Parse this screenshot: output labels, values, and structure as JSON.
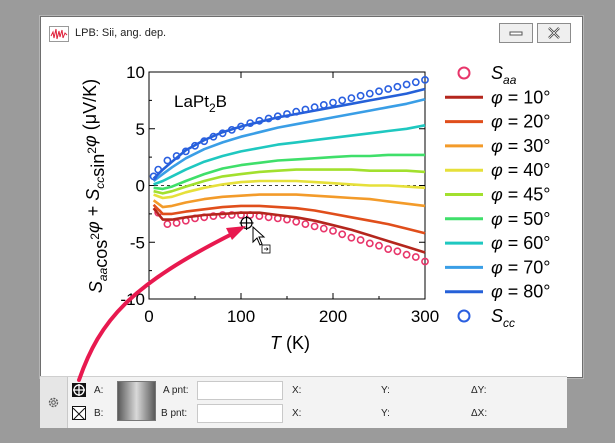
{
  "window": {
    "title": "LPB: Sii, ang. dep.",
    "minimize_icon": "minimize-icon",
    "close_icon": "close-icon"
  },
  "chart_data": {
    "type": "line",
    "title": "",
    "annotation": "LaPt2B",
    "xlabel": "T (K)",
    "ylabel": "Saa cos2 φ + Scc sin2 φ (μV/K)",
    "xlim": [
      0,
      300
    ],
    "ylim": [
      -10,
      10
    ],
    "x_ticks": [
      0,
      100,
      200,
      300
    ],
    "y_ticks": [
      -10,
      -5,
      0,
      5,
      10
    ],
    "legend_position": "right",
    "zero_line": "dashed",
    "series": [
      {
        "name": "Saa",
        "kind": "markers",
        "color": "#e8356a",
        "x": [
          10,
          20,
          30,
          40,
          50,
          60,
          70,
          80,
          90,
          100,
          110,
          120,
          130,
          140,
          150,
          160,
          170,
          180,
          190,
          200,
          210,
          220,
          230,
          240,
          250,
          260,
          270,
          280,
          290,
          300
        ],
        "y": [
          -2.4,
          -3.4,
          -3.3,
          -3.1,
          -2.9,
          -2.8,
          -2.7,
          -2.6,
          -2.6,
          -2.6,
          -2.6,
          -2.7,
          -2.8,
          -2.9,
          -3.0,
          -3.2,
          -3.4,
          -3.6,
          -3.8,
          -4.0,
          -4.3,
          -4.6,
          -4.8,
          -5.1,
          -5.3,
          -5.6,
          -5.8,
          -6.1,
          -6.3,
          -6.7
        ]
      },
      {
        "name": "φ = 10°",
        "kind": "line",
        "color": "#b4261d",
        "x": [
          5,
          15,
          25,
          40,
          60,
          80,
          100,
          120,
          140,
          160,
          180,
          200,
          220,
          240,
          260,
          280,
          300
        ],
        "y": [
          -2.0,
          -3.0,
          -3.0,
          -2.8,
          -2.6,
          -2.5,
          -2.4,
          -2.4,
          -2.6,
          -2.8,
          -3.1,
          -3.5,
          -3.9,
          -4.4,
          -4.9,
          -5.4,
          -5.9
        ]
      },
      {
        "name": "φ = 20°",
        "kind": "line",
        "color": "#e04e1b",
        "x": [
          5,
          15,
          25,
          40,
          60,
          80,
          100,
          120,
          140,
          160,
          180,
          200,
          220,
          240,
          260,
          280,
          300
        ],
        "y": [
          -1.7,
          -2.5,
          -2.5,
          -2.3,
          -2.1,
          -1.9,
          -1.8,
          -1.8,
          -1.9,
          -2.0,
          -2.2,
          -2.5,
          -2.8,
          -3.1,
          -3.4,
          -3.8,
          -4.2
        ]
      },
      {
        "name": "φ = 30°",
        "kind": "line",
        "color": "#f39b2a",
        "x": [
          5,
          15,
          25,
          40,
          60,
          80,
          100,
          120,
          140,
          160,
          180,
          200,
          220,
          240,
          260,
          280,
          300
        ],
        "y": [
          -1.3,
          -1.9,
          -1.8,
          -1.5,
          -1.2,
          -1.0,
          -0.9,
          -0.8,
          -0.8,
          -0.8,
          -0.9,
          -1.0,
          -1.1,
          -1.2,
          -1.4,
          -1.6,
          -1.8
        ]
      },
      {
        "name": "φ = 40°",
        "kind": "line",
        "color": "#e6e03a",
        "x": [
          5,
          15,
          25,
          40,
          60,
          80,
          100,
          120,
          140,
          160,
          180,
          200,
          220,
          240,
          260,
          280,
          300
        ],
        "y": [
          -0.8,
          -1.1,
          -1.0,
          -0.6,
          -0.2,
          0.1,
          0.3,
          0.4,
          0.4,
          0.4,
          0.3,
          0.2,
          0.1,
          0.0,
          0.0,
          -0.1,
          -0.2
        ]
      },
      {
        "name": "φ = 45°",
        "kind": "line",
        "color": "#a2e02e",
        "x": [
          5,
          15,
          25,
          40,
          60,
          80,
          100,
          120,
          140,
          160,
          180,
          200,
          220,
          240,
          260,
          280,
          300
        ],
        "y": [
          -0.5,
          -0.7,
          -0.5,
          -0.1,
          0.4,
          0.8,
          1.0,
          1.2,
          1.3,
          1.4,
          1.4,
          1.4,
          1.4,
          1.3,
          1.3,
          1.3,
          1.2
        ]
      },
      {
        "name": "φ = 50°",
        "kind": "line",
        "color": "#3fdf6a",
        "x": [
          5,
          15,
          25,
          40,
          60,
          80,
          100,
          120,
          140,
          160,
          180,
          200,
          220,
          240,
          260,
          280,
          300
        ],
        "y": [
          -0.2,
          -0.3,
          -0.1,
          0.4,
          1.0,
          1.5,
          1.8,
          2.0,
          2.2,
          2.3,
          2.4,
          2.5,
          2.6,
          2.6,
          2.7,
          2.7,
          2.7
        ]
      },
      {
        "name": "φ = 60°",
        "kind": "line",
        "color": "#1fc8c0",
        "x": [
          5,
          15,
          25,
          40,
          60,
          80,
          100,
          120,
          140,
          160,
          180,
          200,
          220,
          240,
          260,
          280,
          300
        ],
        "y": [
          0.1,
          0.4,
          0.8,
          1.4,
          2.1,
          2.6,
          3.0,
          3.3,
          3.6,
          3.8,
          4.0,
          4.2,
          4.4,
          4.6,
          4.8,
          5.0,
          5.3
        ]
      },
      {
        "name": "φ = 70°",
        "kind": "line",
        "color": "#3a9ee6",
        "x": [
          5,
          15,
          25,
          40,
          60,
          80,
          100,
          120,
          140,
          160,
          180,
          200,
          220,
          240,
          260,
          280,
          300
        ],
        "y": [
          0.4,
          1.0,
          1.6,
          2.4,
          3.2,
          3.8,
          4.3,
          4.7,
          5.1,
          5.4,
          5.7,
          6.0,
          6.3,
          6.6,
          6.9,
          7.2,
          7.6
        ]
      },
      {
        "name": "φ = 80°",
        "kind": "line",
        "color": "#2560d8",
        "x": [
          5,
          15,
          25,
          40,
          60,
          80,
          100,
          120,
          140,
          160,
          180,
          200,
          220,
          240,
          260,
          280,
          300
        ],
        "y": [
          0.6,
          1.4,
          2.1,
          3.1,
          4.0,
          4.7,
          5.2,
          5.6,
          6.0,
          6.3,
          6.6,
          6.9,
          7.2,
          7.5,
          7.8,
          8.1,
          8.5
        ]
      },
      {
        "name": "Scc",
        "kind": "markers",
        "color": "#2a5fe0",
        "x": [
          5,
          10,
          20,
          30,
          40,
          50,
          60,
          70,
          80,
          90,
          100,
          110,
          120,
          130,
          140,
          150,
          160,
          170,
          180,
          190,
          200,
          210,
          220,
          230,
          240,
          250,
          260,
          270,
          280,
          290,
          300
        ],
        "y": [
          0.8,
          1.4,
          2.2,
          2.6,
          3.0,
          3.5,
          3.9,
          4.3,
          4.6,
          4.9,
          5.2,
          5.5,
          5.7,
          5.9,
          6.1,
          6.3,
          6.5,
          6.7,
          6.9,
          7.1,
          7.3,
          7.5,
          7.7,
          7.9,
          8.1,
          8.3,
          8.5,
          8.7,
          8.9,
          9.1,
          9.3
        ]
      }
    ]
  },
  "cursor_panel": {
    "settings_icon": "gear-icon",
    "cursor_a_label": "A:",
    "cursor_b_label": "B:",
    "a_pnt_label": "A pnt:",
    "b_pnt_label": "B pnt:",
    "a_pnt_value": "",
    "b_pnt_value": "",
    "x_a": "X:",
    "y_a": "Y:",
    "dy": "ΔY:",
    "x_b": "X:",
    "y_b": "Y:",
    "dx": "ΔX:"
  },
  "annotation_arrow_color": "#e8194f"
}
